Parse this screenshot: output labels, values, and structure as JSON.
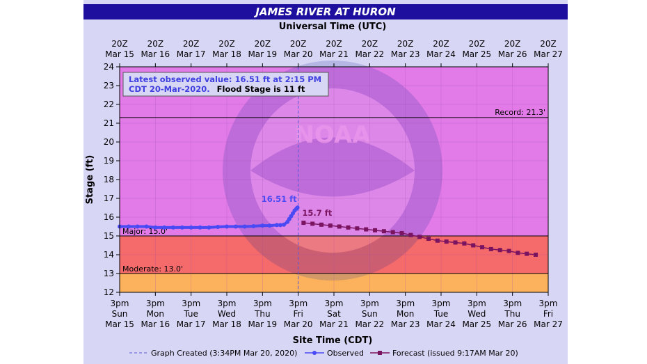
{
  "title": "JAMES RIVER AT HURON",
  "top_axis_title": "Universal Time (UTC)",
  "bottom_axis_title": "Site Time (CDT)",
  "colors": {
    "title_bar": "#1e0f9e",
    "background": "#d8d6f5",
    "band_top": "#e27be8",
    "band_major": "#f56a6a",
    "band_moderate": "#fcb25c",
    "observed": "#4a4af5",
    "forecast": "#7a1460"
  },
  "chart_data": {
    "type": "line",
    "ylabel": "Stage (ft)",
    "xlabel": "Site Time (CDT)",
    "ylim": [
      12,
      24
    ],
    "yticks": [
      "12",
      "13",
      "14",
      "15",
      "16",
      "17",
      "18",
      "19",
      "20",
      "21",
      "22",
      "23",
      "24"
    ],
    "x_top_ticks": [
      {
        "l1": "20Z",
        "l2": "Mar 15"
      },
      {
        "l1": "20Z",
        "l2": "Mar 16"
      },
      {
        "l1": "20Z",
        "l2": "Mar 17"
      },
      {
        "l1": "20Z",
        "l2": "Mar 18"
      },
      {
        "l1": "20Z",
        "l2": "Mar 19"
      },
      {
        "l1": "20Z",
        "l2": "Mar 20"
      },
      {
        "l1": "20Z",
        "l2": "Mar 21"
      },
      {
        "l1": "20Z",
        "l2": "Mar 22"
      },
      {
        "l1": "20Z",
        "l2": "Mar 23"
      },
      {
        "l1": "20Z",
        "l2": "Mar 24"
      },
      {
        "l1": "20Z",
        "l2": "Mar 25"
      },
      {
        "l1": "20Z",
        "l2": "Mar 26"
      },
      {
        "l1": "20Z",
        "l2": "Mar 27"
      }
    ],
    "x_bottom_ticks": [
      {
        "l1": "3pm",
        "l2": "Sun",
        "l3": "Mar 15"
      },
      {
        "l1": "3pm",
        "l2": "Mon",
        "l3": "Mar 16"
      },
      {
        "l1": "3pm",
        "l2": "Tue",
        "l3": "Mar 17"
      },
      {
        "l1": "3pm",
        "l2": "Wed",
        "l3": "Mar 18"
      },
      {
        "l1": "3pm",
        "l2": "Thu",
        "l3": "Mar 19"
      },
      {
        "l1": "3pm",
        "l2": "Fri",
        "l3": "Mar 20"
      },
      {
        "l1": "3pm",
        "l2": "Sat",
        "l3": "Mar 21"
      },
      {
        "l1": "3pm",
        "l2": "Sun",
        "l3": "Mar 22"
      },
      {
        "l1": "3pm",
        "l2": "Mon",
        "l3": "Mar 23"
      },
      {
        "l1": "3pm",
        "l2": "Tue",
        "l3": "Mar 24"
      },
      {
        "l1": "3pm",
        "l2": "Wed",
        "l3": "Mar 25"
      },
      {
        "l1": "3pm",
        "l2": "Thu",
        "l3": "Mar 26"
      },
      {
        "l1": "3pm",
        "l2": "Fri",
        "l3": "Mar 27"
      }
    ],
    "bands": [
      {
        "name": "Major",
        "from": 15,
        "to": 24,
        "color": "#e27be8"
      },
      {
        "name": "Major",
        "from": 13,
        "to": 15,
        "color": "#f56a6a"
      },
      {
        "name": "Moderate",
        "from": 12,
        "to": 13,
        "color": "#fcb25c"
      }
    ],
    "thresholds": [
      {
        "label": "Record: 21.3'",
        "value": 21.3
      },
      {
        "label": "Major: 15.0'",
        "value": 15.0
      },
      {
        "label": "Moderate: 13.0'",
        "value": 13.0
      }
    ],
    "graph_created_day": 5,
    "series": [
      {
        "name": "Observed",
        "color": "#4a4af5",
        "x": [
          0,
          0.25,
          0.5,
          0.75,
          1,
          1.25,
          1.5,
          1.75,
          2,
          2.25,
          2.5,
          2.75,
          3,
          3.25,
          3.5,
          3.75,
          4,
          4.2,
          4.4,
          4.5,
          4.6,
          4.7,
          4.75,
          4.8,
          4.85,
          4.9,
          4.95,
          4.98
        ],
        "y": [
          15.5,
          15.5,
          15.5,
          15.5,
          15.45,
          15.45,
          15.45,
          15.45,
          15.45,
          15.45,
          15.45,
          15.48,
          15.5,
          15.5,
          15.5,
          15.52,
          15.55,
          15.55,
          15.58,
          15.58,
          15.6,
          15.75,
          15.9,
          16.05,
          16.2,
          16.35,
          16.45,
          16.51
        ]
      },
      {
        "name": "Forecast",
        "color": "#7a1460",
        "x": [
          5.15,
          5.4,
          5.65,
          5.9,
          6.15,
          6.4,
          6.65,
          6.9,
          7.15,
          7.4,
          7.65,
          7.9,
          8.15,
          8.4,
          8.65,
          8.9,
          9.15,
          9.4,
          9.65,
          9.9,
          10.15,
          10.4,
          10.65,
          10.9,
          11.15,
          11.4,
          11.65
        ],
        "y": [
          15.7,
          15.65,
          15.6,
          15.55,
          15.5,
          15.45,
          15.4,
          15.35,
          15.3,
          15.25,
          15.2,
          15.15,
          15.05,
          14.95,
          14.85,
          14.75,
          14.7,
          14.65,
          14.6,
          14.5,
          14.4,
          14.3,
          14.25,
          14.2,
          14.1,
          14.05,
          14.0
        ]
      }
    ],
    "annotations": {
      "observed_label": "16.51 ft",
      "forecast_label": "15.7 ft",
      "latest_line1": "Latest observed value: 16.51 ft at 2:15 PM",
      "latest_line2a": "CDT 20-Mar-2020.",
      "latest_line2b": "Flood Stage is 11 ft"
    },
    "legend": {
      "created": "Graph Created (3:34PM Mar 20, 2020)",
      "observed": "Observed",
      "forecast": "Forecast (issued 9:17AM Mar 20)"
    }
  }
}
